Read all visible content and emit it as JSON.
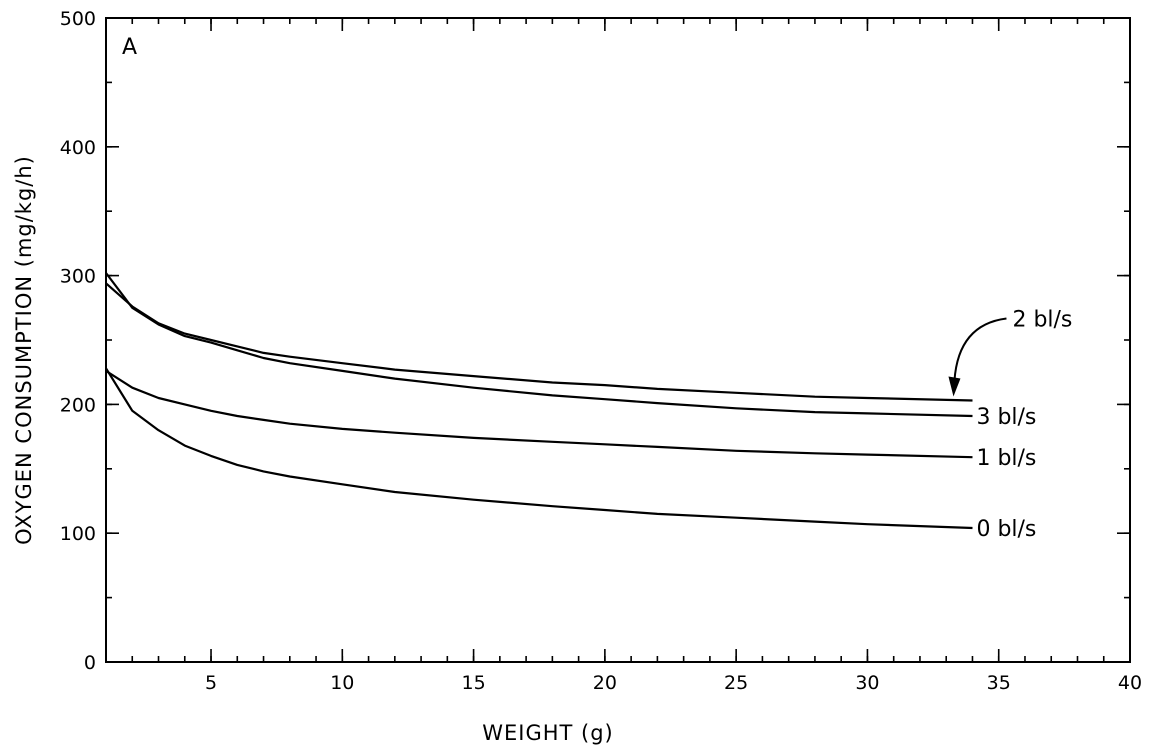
{
  "chart_data": {
    "type": "line",
    "panel_label": "A",
    "xlabel": "WEIGHT (g)",
    "ylabel": "OXYGEN CONSUMPTION (mg/kg/h)",
    "xlim": [
      1,
      40
    ],
    "ylim": [
      0,
      500
    ],
    "x_ticks": [
      5,
      10,
      15,
      20,
      25,
      30,
      35,
      40
    ],
    "y_ticks": [
      0,
      100,
      200,
      300,
      400,
      500
    ],
    "x_minor_step": 1,
    "y_minor_step": 50,
    "grid": false,
    "series": [
      {
        "name": "2 bl/s",
        "points": [
          [
            1,
            294
          ],
          [
            2,
            276
          ],
          [
            3,
            263
          ],
          [
            4,
            255
          ],
          [
            5,
            250
          ],
          [
            6,
            245
          ],
          [
            7,
            240
          ],
          [
            8,
            237
          ],
          [
            10,
            232
          ],
          [
            12,
            227
          ],
          [
            15,
            222
          ],
          [
            18,
            217
          ],
          [
            20,
            215
          ],
          [
            22,
            212
          ],
          [
            25,
            209
          ],
          [
            28,
            206
          ],
          [
            30,
            205
          ],
          [
            34,
            203
          ]
        ]
      },
      {
        "name": "3 bl/s",
        "points": [
          [
            1,
            302
          ],
          [
            2,
            275
          ],
          [
            3,
            262
          ],
          [
            4,
            253
          ],
          [
            5,
            248
          ],
          [
            6,
            242
          ],
          [
            7,
            236
          ],
          [
            8,
            232
          ],
          [
            10,
            226
          ],
          [
            12,
            220
          ],
          [
            15,
            213
          ],
          [
            18,
            207
          ],
          [
            20,
            204
          ],
          [
            22,
            201
          ],
          [
            25,
            197
          ],
          [
            28,
            194
          ],
          [
            30,
            193
          ],
          [
            34,
            191
          ]
        ]
      },
      {
        "name": "1 bl/s",
        "points": [
          [
            1,
            226
          ],
          [
            2,
            213
          ],
          [
            3,
            205
          ],
          [
            4,
            200
          ],
          [
            5,
            195
          ],
          [
            6,
            191
          ],
          [
            7,
            188
          ],
          [
            8,
            185
          ],
          [
            10,
            181
          ],
          [
            12,
            178
          ],
          [
            15,
            174
          ],
          [
            18,
            171
          ],
          [
            20,
            169
          ],
          [
            22,
            167
          ],
          [
            25,
            164
          ],
          [
            28,
            162
          ],
          [
            30,
            161
          ],
          [
            34,
            159
          ]
        ]
      },
      {
        "name": "0 bl/s",
        "points": [
          [
            1,
            228
          ],
          [
            2,
            195
          ],
          [
            3,
            180
          ],
          [
            4,
            168
          ],
          [
            5,
            160
          ],
          [
            6,
            153
          ],
          [
            7,
            148
          ],
          [
            8,
            144
          ],
          [
            10,
            138
          ],
          [
            12,
            132
          ],
          [
            15,
            126
          ],
          [
            18,
            121
          ],
          [
            20,
            118
          ],
          [
            22,
            115
          ],
          [
            25,
            112
          ],
          [
            28,
            109
          ],
          [
            30,
            107
          ],
          [
            34,
            104
          ]
        ]
      }
    ],
    "annotations": [
      {
        "text": "2 bl/s",
        "points_to_series": "2 bl/s",
        "arrow": true
      }
    ]
  }
}
